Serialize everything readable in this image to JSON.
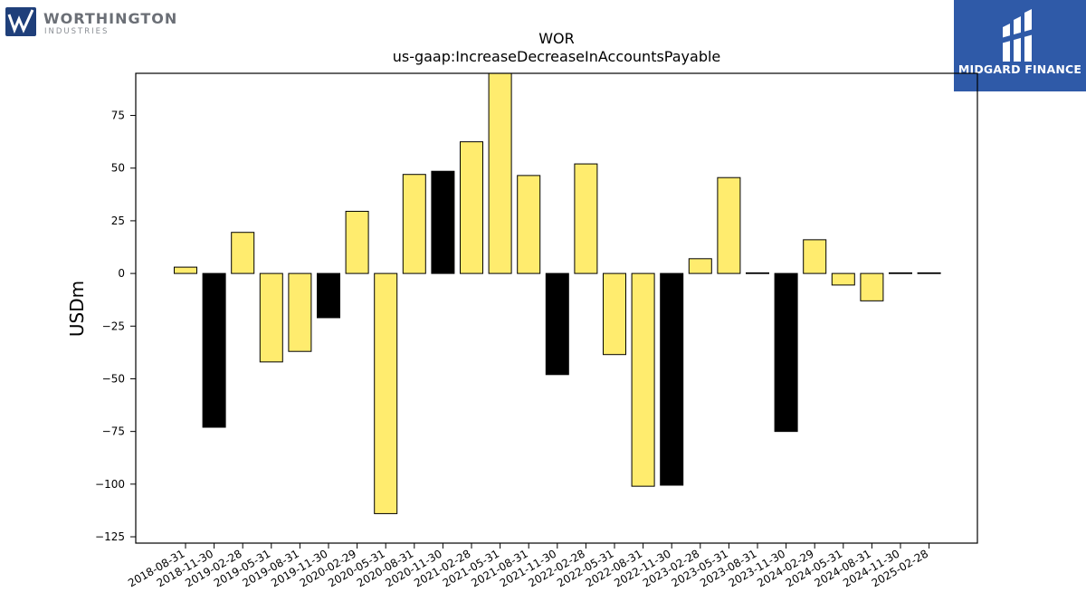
{
  "logos": {
    "left": {
      "name": "WORTHINGTON",
      "sub": "INDUSTRIES",
      "color": "#1f3f7a"
    },
    "right": {
      "name": "MIDGARD FINANCE",
      "color": "#2f5aa8"
    }
  },
  "chart_data": {
    "type": "bar",
    "title": "WOR",
    "subtitle": "us-gaap:IncreaseDecreaseInAccountsPayable",
    "xlabel": "",
    "ylabel": "USDm",
    "ylim": [
      -128,
      95
    ],
    "yticks": [
      75,
      50,
      25,
      0,
      -25,
      -50,
      -75,
      -100,
      -125
    ],
    "ytick_labels": [
      "75",
      "50",
      "25",
      "0",
      "−25",
      "−50",
      "−75",
      "−100",
      "−125"
    ],
    "grid": false,
    "categories": [
      "2018-08-31",
      "2018-11-30",
      "2019-02-28",
      "2019-05-31",
      "2019-08-31",
      "2019-11-30",
      "2020-02-29",
      "2020-05-31",
      "2020-08-31",
      "2020-11-30",
      "2021-02-28",
      "2021-05-31",
      "2021-08-31",
      "2021-11-30",
      "2022-02-28",
      "2022-05-31",
      "2022-08-31",
      "2022-11-30",
      "2023-02-28",
      "2023-05-31",
      "2023-08-31",
      "2023-11-30",
      "2024-02-29",
      "2024-05-31",
      "2024-08-31",
      "2024-11-30",
      "2025-02-28"
    ],
    "values": [
      3,
      -73,
      19.5,
      -42,
      -37,
      -21,
      29.5,
      -114,
      47,
      48.5,
      62.5,
      96,
      46.5,
      -48,
      52,
      -38.5,
      -101,
      -100.5,
      7,
      45.5,
      0.3,
      -75,
      16,
      -5.5,
      -13,
      0.3,
      0.3
    ],
    "bar_colors": [
      "#ffec6e",
      "#000000",
      "#ffec6e",
      "#ffec6e",
      "#ffec6e",
      "#000000",
      "#ffec6e",
      "#ffec6e",
      "#ffec6e",
      "#000000",
      "#ffec6e",
      "#ffec6e",
      "#ffec6e",
      "#000000",
      "#ffec6e",
      "#ffec6e",
      "#ffec6e",
      "#000000",
      "#ffec6e",
      "#ffec6e",
      "#000000",
      "#000000",
      "#ffec6e",
      "#ffec6e",
      "#ffec6e",
      "#000000",
      "#000000"
    ]
  }
}
